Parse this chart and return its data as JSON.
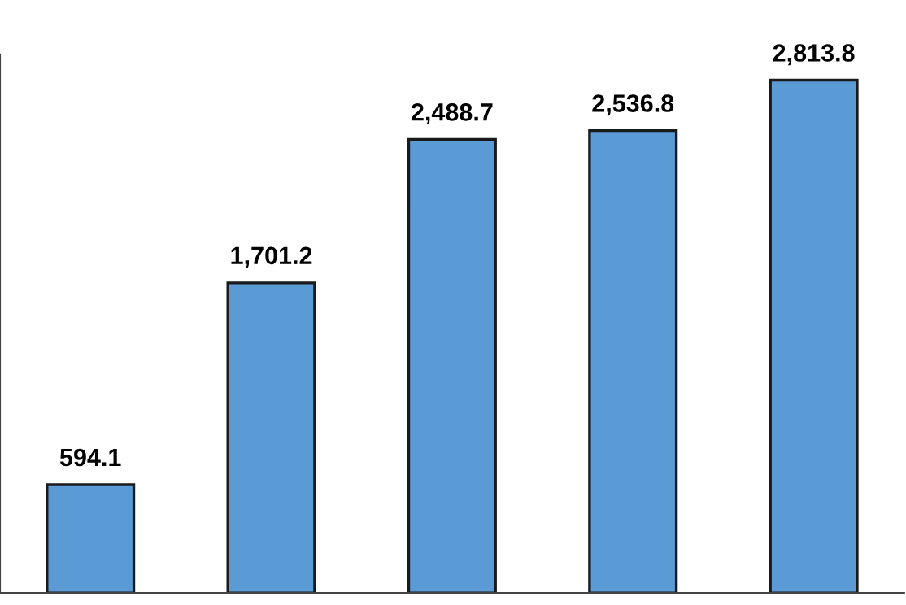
{
  "chart_data": {
    "type": "bar",
    "categories": [
      null,
      null,
      null,
      null,
      null
    ],
    "values": [
      594.1,
      1701.2,
      2488.7,
      2536.8,
      2813.8
    ],
    "value_labels": [
      "594.1",
      "1,701.2",
      "2,488.7",
      "2,536.8",
      "2,813.8"
    ],
    "color": "#5b9bd5",
    "grid": false,
    "legend": false
  }
}
